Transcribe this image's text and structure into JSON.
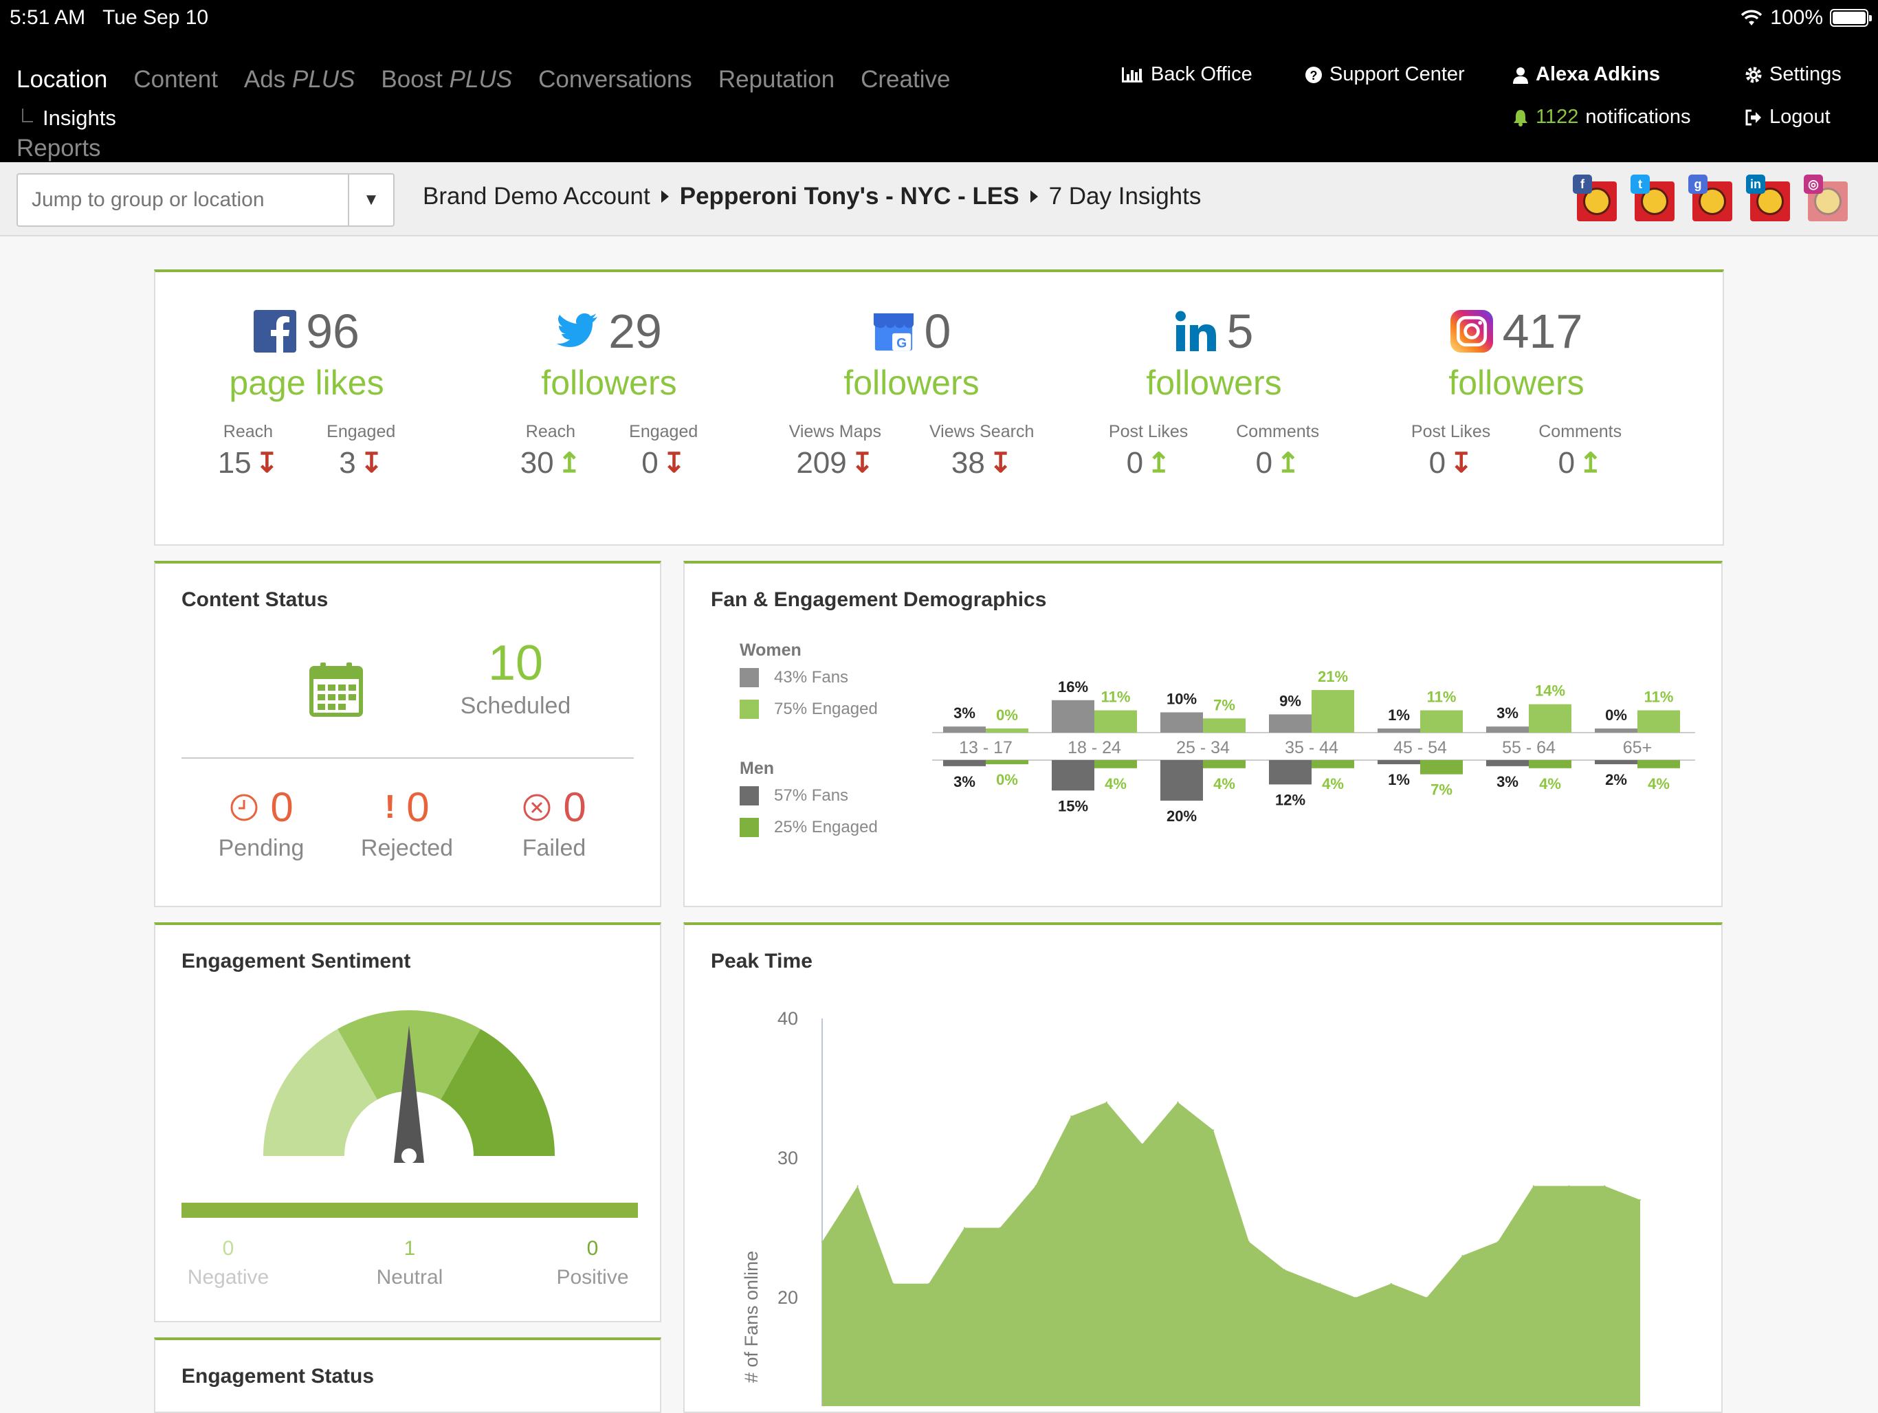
{
  "status_bar": {
    "time": "5:51 AM",
    "date": "Tue Sep 10",
    "battery": "100%"
  },
  "nav": {
    "items": [
      {
        "label": "Location",
        "suffix": ""
      },
      {
        "label": "Content",
        "suffix": ""
      },
      {
        "label": "Ads",
        "suffix": "PLUS"
      },
      {
        "label": "Boost",
        "suffix": "PLUS"
      },
      {
        "label": "Conversations",
        "suffix": ""
      },
      {
        "label": "Reputation",
        "suffix": ""
      },
      {
        "label": "Creative",
        "suffix": ""
      }
    ],
    "sub_item": "Insights",
    "reports": "Reports",
    "back_office": "Back Office",
    "support_center": "Support Center",
    "user_name": "Alexa Adkins",
    "notifications_count": "1122",
    "notifications_label": "notifications",
    "settings": "Settings",
    "logout": "Logout"
  },
  "breadcrumb": {
    "search_placeholder": "Jump to group or location",
    "account": "Brand Demo Account",
    "location": "Pepperoni Tony's - NYC - LES",
    "page": "7 Day Insights"
  },
  "colors": {
    "accent": "#8cc63f",
    "up": "#8cc63f",
    "down": "#c0392b",
    "fans_grey": "#8f8f8f",
    "men_grey": "#6d6d6d",
    "engaged_light": "#99c95c",
    "engaged_dark": "#7fb13f"
  },
  "networks": [
    {
      "icon": "facebook-icon",
      "count": "96",
      "label": "page likes",
      "metrics": [
        {
          "label": "Reach",
          "value": "15",
          "dir": "down"
        },
        {
          "label": "Engaged",
          "value": "3",
          "dir": "down"
        }
      ]
    },
    {
      "icon": "twitter-icon",
      "count": "29",
      "label": "followers",
      "metrics": [
        {
          "label": "Reach",
          "value": "30",
          "dir": "up"
        },
        {
          "label": "Engaged",
          "value": "0",
          "dir": "down"
        }
      ]
    },
    {
      "icon": "google-my-business-icon",
      "count": "0",
      "label": "followers",
      "metrics": [
        {
          "label": "Views Maps",
          "value": "209",
          "dir": "down"
        },
        {
          "label": "Views Search",
          "value": "38",
          "dir": "down"
        }
      ]
    },
    {
      "icon": "linkedin-icon",
      "count": "5",
      "label": "followers",
      "metrics": [
        {
          "label": "Post Likes",
          "value": "0",
          "dir": "up"
        },
        {
          "label": "Comments",
          "value": "0",
          "dir": "up"
        }
      ]
    },
    {
      "icon": "instagram-icon",
      "count": "417",
      "label": "followers",
      "metrics": [
        {
          "label": "Post Likes",
          "value": "0",
          "dir": "down"
        },
        {
          "label": "Comments",
          "value": "0",
          "dir": "up"
        }
      ]
    }
  ],
  "content_status": {
    "title": "Content Status",
    "scheduled_count": "10",
    "scheduled_label": "Scheduled",
    "pending_count": "0",
    "pending_label": "Pending",
    "rejected_count": "0",
    "rejected_label": "Rejected",
    "failed_count": "0",
    "failed_label": "Failed"
  },
  "demographics": {
    "title": "Fan & Engagement Demographics",
    "women_label": "Women",
    "women_fans": "43% Fans",
    "women_engaged": "75% Engaged",
    "men_label": "Men",
    "men_fans": "57% Fans",
    "men_engaged": "25% Engaged"
  },
  "sentiment": {
    "title": "Engagement Sentiment",
    "negative_count": "0",
    "negative_label": "Negative",
    "neutral_count": "1",
    "neutral_label": "Neutral",
    "positive_count": "0",
    "positive_label": "Positive",
    "needle_value": 0.5
  },
  "engagement_status": {
    "title": "Engagement Status"
  },
  "peak_time": {
    "title": "Peak Time"
  },
  "chart_data": [
    {
      "type": "bar",
      "title": "Fan & Engagement Demographics",
      "categories": [
        "13 - 17",
        "18 - 24",
        "25 - 34",
        "35 - 44",
        "45 - 54",
        "55 - 64",
        "65+"
      ],
      "series": [
        {
          "name": "Women Fans",
          "values": [
            3,
            16,
            10,
            9,
            1,
            3,
            0
          ]
        },
        {
          "name": "Women Engaged",
          "values": [
            0,
            11,
            7,
            21,
            11,
            14,
            11
          ]
        },
        {
          "name": "Men Fans",
          "values": [
            3,
            15,
            20,
            12,
            1,
            3,
            2
          ]
        },
        {
          "name": "Men Engaged",
          "values": [
            0,
            4,
            4,
            4,
            7,
            4,
            4
          ]
        }
      ],
      "value_suffix": "%"
    },
    {
      "type": "area",
      "title": "Peak Time",
      "ylabel": "# of Fans online",
      "yticks": [
        20,
        30,
        40
      ],
      "ylim": [
        11,
        40
      ],
      "values": [
        24,
        28,
        21,
        21,
        25,
        25,
        28,
        33,
        34,
        31,
        34,
        32,
        24,
        22,
        21,
        20,
        21,
        20,
        23,
        24,
        28,
        28,
        28,
        27
      ]
    }
  ]
}
